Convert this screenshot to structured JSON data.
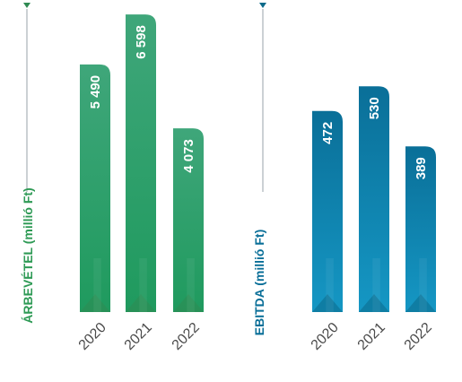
{
  "chart_data": [
    {
      "type": "bar",
      "ylabel": "ÁRBEVÉTEL (millió Ft)",
      "categories": [
        "2020",
        "2021",
        "2022"
      ],
      "values": [
        5490,
        6598,
        4073
      ],
      "value_labels": [
        "5 490",
        "6 598",
        "4 073"
      ],
      "ylim": [
        0,
        6800
      ],
      "grid": false,
      "legend": "none",
      "colors": {
        "top": "#3fa67a",
        "bottom": "#1f9a5e",
        "accent": "#2f8a52",
        "title": "#2e9a55"
      }
    },
    {
      "type": "bar",
      "ylabel": "EBITDA (millió Ft)",
      "categories": [
        "2020",
        "2021",
        "2022"
      ],
      "values": [
        472,
        530,
        389
      ],
      "value_labels": [
        "472",
        "530",
        "389"
      ],
      "ylim": [
        0,
        720
      ],
      "grid": false,
      "legend": "none",
      "colors": {
        "top": "#0a6f98",
        "bottom": "#1597c4",
        "accent": "#0b6a8a",
        "title": "#0a6f98"
      }
    }
  ]
}
